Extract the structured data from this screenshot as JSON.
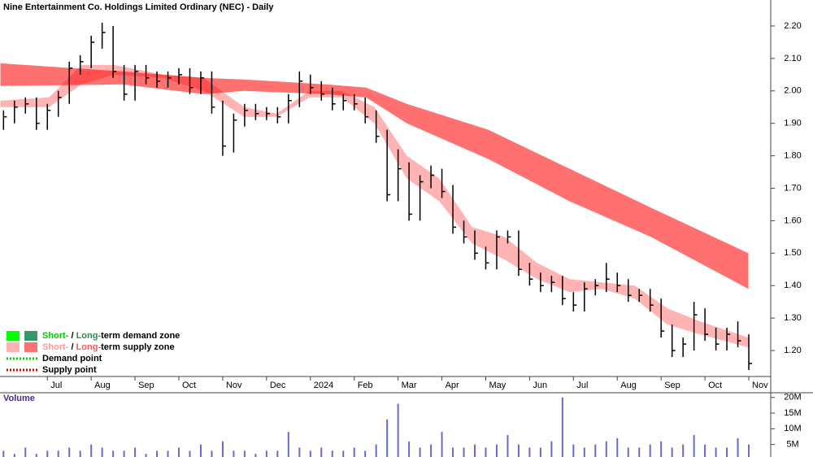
{
  "chart_data": {
    "type": "ohlc",
    "title": "Nine Entertainment Co. Holdings Limited Ordinary (NEC) - Daily",
    "color": "#000000",
    "x": [
      0,
      0.25,
      0.5,
      0.75,
      1,
      1.25,
      1.5,
      1.75,
      2,
      2.25,
      2.5,
      2.75,
      3,
      3.25,
      3.5,
      3.75,
      4,
      4.25,
      4.5,
      4.75,
      5,
      5.25,
      5.5,
      5.75,
      6,
      6.25,
      6.5,
      6.75,
      7,
      7.25,
      7.5,
      7.75,
      8,
      8.25,
      8.5,
      8.75,
      9,
      9.25,
      9.5,
      9.75,
      10,
      10.25,
      10.5,
      10.75,
      11,
      11.25,
      11.5,
      11.75,
      12,
      12.25,
      12.5,
      12.75,
      13,
      13.25,
      13.5,
      13.75,
      14,
      14.25,
      14.5,
      14.75,
      15,
      15.25,
      15.5,
      15.75,
      16,
      16.25,
      16.5,
      16.75,
      17
    ],
    "high": [
      1.94,
      1.97,
      1.98,
      1.98,
      1.96,
      2.0,
      2.09,
      2.11,
      2.17,
      2.21,
      2.2,
      2.08,
      2.08,
      2.08,
      2.06,
      2.06,
      2.07,
      2.07,
      2.06,
      2.06,
      1.97,
      1.93,
      1.96,
      1.96,
      1.95,
      1.95,
      1.99,
      2.06,
      2.05,
      2.03,
      2.01,
      1.99,
      1.99,
      1.98,
      1.94,
      1.88,
      1.82,
      1.78,
      1.74,
      1.77,
      1.76,
      1.71,
      1.6,
      1.57,
      1.52,
      1.57,
      1.57,
      1.57,
      1.47,
      1.44,
      1.43,
      1.43,
      1.38,
      1.41,
      1.42,
      1.47,
      1.44,
      1.42,
      1.39,
      1.39,
      1.36,
      1.28,
      1.24,
      1.35,
      1.33,
      1.27,
      1.27,
      1.29,
      1.25
    ],
    "low": [
      1.88,
      1.9,
      1.93,
      1.88,
      1.88,
      1.92,
      1.96,
      2.05,
      2.07,
      2.13,
      2.04,
      1.97,
      1.97,
      2.02,
      2.01,
      2.01,
      2.02,
      1.99,
      1.99,
      1.93,
      1.8,
      1.81,
      1.89,
      1.91,
      1.91,
      1.9,
      1.9,
      1.95,
      1.99,
      1.97,
      1.94,
      1.94,
      1.94,
      1.9,
      1.84,
      1.66,
      1.66,
      1.6,
      1.6,
      1.7,
      1.67,
      1.56,
      1.53,
      1.48,
      1.45,
      1.45,
      1.53,
      1.43,
      1.4,
      1.38,
      1.38,
      1.34,
      1.32,
      1.32,
      1.37,
      1.38,
      1.38,
      1.35,
      1.35,
      1.32,
      1.24,
      1.18,
      1.18,
      1.2,
      1.23,
      1.2,
      1.2,
      1.21,
      1.14
    ],
    "close": [
      1.92,
      1.95,
      1.96,
      1.9,
      1.94,
      1.98,
      2.07,
      2.09,
      2.15,
      2.18,
      2.06,
      1.99,
      2.06,
      2.04,
      2.03,
      2.04,
      2.05,
      2.01,
      2.04,
      1.95,
      1.83,
      1.91,
      1.94,
      1.93,
      1.93,
      1.92,
      1.97,
      2.03,
      2.01,
      1.99,
      1.96,
      1.97,
      1.96,
      1.92,
      1.86,
      1.68,
      1.76,
      1.62,
      1.72,
      1.74,
      1.69,
      1.58,
      1.55,
      1.5,
      1.47,
      1.55,
      1.55,
      1.45,
      1.42,
      1.4,
      1.41,
      1.36,
      1.34,
      1.39,
      1.4,
      1.42,
      1.4,
      1.37,
      1.37,
      1.34,
      1.26,
      1.2,
      1.22,
      1.31,
      1.25,
      1.22,
      1.25,
      1.23,
      1.16
    ],
    "bands": [
      {
        "color": "#ffb3b3",
        "x": [
          -0.07,
          1.04,
          1.78,
          2.52,
          3.64,
          4.56,
          5.49,
          6.23,
          6.98,
          7.72,
          8.46,
          9.2,
          9.94,
          10.69,
          11.43,
          12.17,
          12.91,
          13.65,
          14.4,
          15.14,
          15.88,
          16.99
        ],
        "upper": [
          1.97,
          1.98,
          2.08,
          2.08,
          2.05,
          2.04,
          1.95,
          1.93,
          2.0,
          2.0,
          1.95,
          1.8,
          1.73,
          1.58,
          1.55,
          1.47,
          1.42,
          1.41,
          1.4,
          1.33,
          1.29,
          1.24
        ],
        "lower": [
          1.95,
          1.95,
          2.02,
          2.05,
          2.04,
          2.0,
          1.92,
          1.92,
          1.98,
          1.98,
          1.9,
          1.73,
          1.66,
          1.53,
          1.48,
          1.42,
          1.38,
          1.39,
          1.36,
          1.28,
          1.25,
          1.21
        ]
      },
      {
        "color": "#ff7070",
        "x": [
          -0.07,
          2.71,
          4.56,
          5.49,
          7.35,
          8.27,
          9.2,
          11.06,
          12.91,
          14.77,
          16.99
        ],
        "upper": [
          2.085,
          2.06,
          2.04,
          2.035,
          2.02,
          2.01,
          1.96,
          1.88,
          1.76,
          1.64,
          1.5
        ],
        "lower": [
          2.015,
          2.02,
          1.99,
          2.0,
          1.99,
          1.98,
          1.9,
          1.79,
          1.66,
          1.55,
          1.39
        ]
      }
    ],
    "xlim": [
      -0.08,
      17.5
    ],
    "xticks": [
      {
        "value": 1,
        "label": "Jul"
      },
      {
        "value": 2,
        "label": "Aug"
      },
      {
        "value": 3,
        "label": "Sep"
      },
      {
        "value": 4,
        "label": "Oct"
      },
      {
        "value": 5,
        "label": "Nov"
      },
      {
        "value": 6,
        "label": "Dec"
      },
      {
        "value": 7,
        "label": "2024"
      },
      {
        "value": 8,
        "label": "Feb"
      },
      {
        "value": 9,
        "label": "Mar"
      },
      {
        "value": 10,
        "label": "Apr"
      },
      {
        "value": 11,
        "label": "May"
      },
      {
        "value": 12,
        "label": "Jun"
      },
      {
        "value": 13,
        "label": "Jul"
      },
      {
        "value": 14,
        "label": "Aug"
      },
      {
        "value": 15,
        "label": "Sep"
      },
      {
        "value": 16,
        "label": "Oct"
      },
      {
        "value": 17,
        "label": "Nov"
      }
    ],
    "ylim": [
      1.12,
      2.28
    ],
    "yticks": [
      {
        "value": 2.2,
        "label": "2.20"
      },
      {
        "value": 2.1,
        "label": "2.10"
      },
      {
        "value": 2.0,
        "label": "2.00"
      },
      {
        "value": 1.9,
        "label": "1.90"
      },
      {
        "value": 1.8,
        "label": "1.80"
      },
      {
        "value": 1.7,
        "label": "1.70"
      },
      {
        "value": 1.6,
        "label": "1.60"
      },
      {
        "value": 1.5,
        "label": "1.50"
      },
      {
        "value": 1.4,
        "label": "1.40"
      },
      {
        "value": 1.3,
        "label": "1.30"
      },
      {
        "value": 1.2,
        "label": "1.20"
      }
    ],
    "volume": {
      "label": "Volume",
      "color": "#6a6acd",
      "values": [
        3,
        2,
        4,
        2,
        3,
        3,
        4,
        3,
        5,
        4,
        3,
        3,
        4,
        2,
        3,
        3,
        4,
        3,
        5,
        3,
        6,
        3,
        3,
        2,
        3,
        3,
        9,
        4,
        3,
        4,
        3,
        3,
        4,
        3,
        5,
        13,
        18,
        6,
        4,
        5,
        9,
        4,
        4,
        5,
        4,
        5,
        8,
        5,
        4,
        4,
        6,
        20,
        5,
        4,
        5,
        6,
        7,
        4,
        4,
        5,
        6,
        4,
        5,
        8,
        5,
        4,
        4,
        7,
        5
      ],
      "ylim": [
        1,
        21.5
      ],
      "yticks": [
        {
          "value": 20,
          "label": "20M"
        },
        {
          "value": 15,
          "label": "15M"
        },
        {
          "value": 10,
          "label": "10M"
        },
        {
          "value": 5,
          "label": "5M"
        }
      ]
    },
    "legend": {
      "position": "lower left",
      "items": [
        {
          "parts": [
            "Short-",
            " / ",
            "Long-",
            "term demand zone"
          ],
          "part_colors": [
            "#00cc00",
            "#000000",
            "#2e8b57",
            "#000000"
          ],
          "swatches": [
            "#00ff00",
            "#339966"
          ]
        },
        {
          "parts": [
            "Short-",
            " / ",
            "Long-",
            "term supply zone"
          ],
          "part_colors": [
            "#ff9999",
            "#000000",
            "#ff5555",
            "#000000"
          ],
          "swatches": [
            "#ffb3b3",
            "#ff7070"
          ]
        },
        {
          "parts": [
            "Demand point"
          ],
          "line_color": "#00cc00"
        },
        {
          "parts": [
            "Supply point"
          ],
          "line_color": "#cc0000"
        }
      ]
    }
  }
}
